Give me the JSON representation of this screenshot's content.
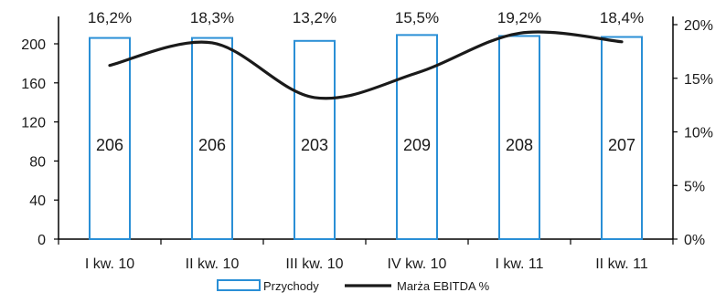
{
  "chart_data": {
    "type": "bar",
    "categories": [
      "I kw. 10",
      "II kw. 10",
      "III kw. 10",
      "IV kw. 10",
      "I kw. 11",
      "II kw. 11"
    ],
    "series": [
      {
        "name": "Przychody",
        "type": "bar",
        "axis": "left",
        "values": [
          206,
          206,
          203,
          209,
          208,
          207
        ],
        "color": "#2a8fd6"
      },
      {
        "name": "Marża EBITDA %",
        "type": "line",
        "axis": "right",
        "values": [
          16.2,
          18.3,
          13.2,
          15.5,
          19.2,
          18.4
        ],
        "labels": [
          "16,2%",
          "18,3%",
          "13,2%",
          "15,5%",
          "19,2%",
          "18,4%"
        ],
        "color": "#1a1a1a"
      }
    ],
    "y_left": {
      "min": 0,
      "max": 200,
      "ticks": [
        "0",
        "40",
        "80",
        "120",
        "160",
        "200"
      ]
    },
    "y_right": {
      "min": 0,
      "max": 20,
      "ticks": [
        "0%",
        "5%",
        "10%",
        "15%",
        "20%"
      ]
    },
    "grid": false,
    "legend_position": "bottom-center"
  }
}
